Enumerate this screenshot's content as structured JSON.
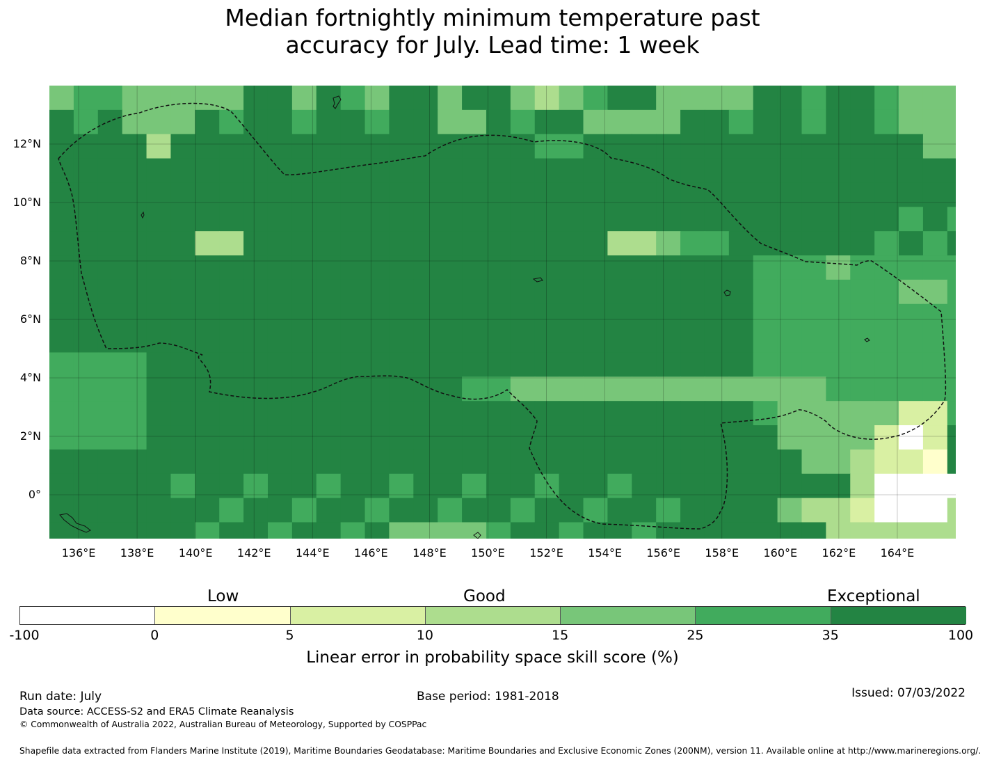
{
  "title": {
    "line1": "Median fortnightly minimum temperature past",
    "line2": "accuracy for July. Lead time: 1 week"
  },
  "map": {
    "lat_labels": [
      "12°N",
      "10°N",
      "8°N",
      "6°N",
      "4°N",
      "2°N",
      "0°"
    ],
    "lon_labels": [
      "136°E",
      "138°E",
      "140°E",
      "142°E",
      "144°E",
      "146°E",
      "148°E",
      "150°E",
      "152°E",
      "154°E",
      "156°E",
      "158°E",
      "160°E",
      "162°E",
      "164°E"
    ],
    "lon_range_deg": [
      135,
      166
    ],
    "lat_range_deg": [
      -1.5,
      14
    ],
    "gridlines": true,
    "boundary_style": "dashed",
    "cell_size_deg": 0.83
  },
  "colorbar": {
    "categories": [
      "Low",
      "Good",
      "Exceptional"
    ],
    "ticks": [
      "-100",
      "0",
      "5",
      "10",
      "15",
      "25",
      "35",
      "100"
    ],
    "label": "Linear error in probability space skill score (%)",
    "colors": [
      "#ffffff",
      "#ffffcc",
      "#d9f0a3",
      "#addd8e",
      "#78c679",
      "#41ab5d",
      "#238443"
    ]
  },
  "footer": {
    "run_date": "Run date: July",
    "base_period": "Base period: 1981-2018",
    "issued": "Issued: 07/03/2022",
    "data_source": "Data source: ACCESS-S2 and ERA5 Climate Reanalysis",
    "copyright": "© Commonwealth of Australia 2022, Australian Bureau of Meteorology, Supported by COSPPac",
    "shapefile": "Shapefile data extracted from Flanders Marine Institute (2019), Maritime Boundaries Geodatabase: Maritime Boundaries and Exclusive Economic Zones (200NM), version 11. Available online at http://www.marineregions.org/."
  }
}
